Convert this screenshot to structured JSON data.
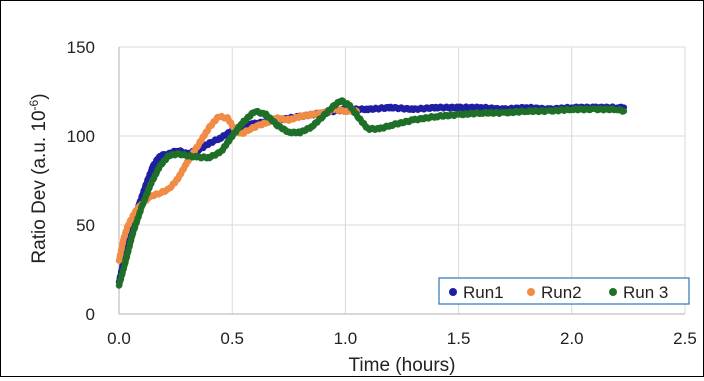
{
  "chart_data": {
    "type": "scatter",
    "xlabel": "Time (hours)",
    "ylabel": "Ratio Dev (a.u. 10",
    "ylabel_sup": "-6",
    "ylabel_suffix": ")",
    "xlim": [
      0,
      2.5
    ],
    "ylim": [
      0,
      150
    ],
    "xticks": [
      0.0,
      0.5,
      1.0,
      1.5,
      2.0,
      2.5
    ],
    "xtick_labels": [
      "0.0",
      "0.5",
      "1.0",
      "1.5",
      "2.0",
      "2.5"
    ],
    "yticks": [
      0,
      50,
      100,
      150
    ],
    "ytick_labels": [
      "0",
      "50",
      "100",
      "150"
    ],
    "grid": true,
    "legend_position": "bottom-right",
    "series": [
      {
        "name": "Run1",
        "color": "#1f1fa3",
        "points": [
          [
            0.0,
            18
          ],
          [
            0.03,
            35
          ],
          [
            0.06,
            50
          ],
          [
            0.09,
            62
          ],
          [
            0.12,
            73
          ],
          [
            0.15,
            83
          ],
          [
            0.18,
            89
          ],
          [
            0.22,
            90
          ],
          [
            0.26,
            92
          ],
          [
            0.3,
            90
          ],
          [
            0.35,
            92
          ],
          [
            0.4,
            96
          ],
          [
            0.45,
            99
          ],
          [
            0.5,
            103
          ],
          [
            0.55,
            106
          ],
          [
            0.6,
            107
          ],
          [
            0.7,
            109
          ],
          [
            0.8,
            111
          ],
          [
            0.9,
            113
          ],
          [
            1.0,
            115
          ],
          [
            1.1,
            115
          ],
          [
            1.2,
            116
          ],
          [
            1.3,
            115
          ],
          [
            1.4,
            116
          ],
          [
            1.5,
            116
          ],
          [
            1.6,
            116
          ],
          [
            1.7,
            115
          ],
          [
            1.8,
            116
          ],
          [
            1.9,
            115
          ],
          [
            2.0,
            116
          ],
          [
            2.1,
            116
          ],
          [
            2.2,
            116
          ],
          [
            2.23,
            116
          ]
        ]
      },
      {
        "name": "Run2",
        "color": "#f08c46",
        "points": [
          [
            0.0,
            30
          ],
          [
            0.02,
            42
          ],
          [
            0.04,
            50
          ],
          [
            0.07,
            57
          ],
          [
            0.1,
            62
          ],
          [
            0.14,
            66
          ],
          [
            0.18,
            68
          ],
          [
            0.22,
            70
          ],
          [
            0.26,
            76
          ],
          [
            0.3,
            85
          ],
          [
            0.35,
            95
          ],
          [
            0.4,
            105
          ],
          [
            0.44,
            111
          ],
          [
            0.48,
            110
          ],
          [
            0.51,
            104
          ],
          [
            0.54,
            101
          ],
          [
            0.58,
            104
          ],
          [
            0.62,
            106
          ],
          [
            0.66,
            108
          ],
          [
            0.7,
            110
          ],
          [
            0.75,
            109
          ],
          [
            0.8,
            111
          ],
          [
            0.85,
            112
          ],
          [
            0.9,
            113
          ],
          [
            0.95,
            115
          ],
          [
            1.0,
            114
          ],
          [
            1.05,
            114
          ]
        ]
      },
      {
        "name": "Run 3",
        "color": "#1f6f28",
        "points": [
          [
            0.0,
            16
          ],
          [
            0.03,
            30
          ],
          [
            0.06,
            45
          ],
          [
            0.1,
            60
          ],
          [
            0.14,
            73
          ],
          [
            0.18,
            83
          ],
          [
            0.22,
            89
          ],
          [
            0.26,
            90
          ],
          [
            0.3,
            89
          ],
          [
            0.35,
            88
          ],
          [
            0.4,
            88
          ],
          [
            0.45,
            91
          ],
          [
            0.5,
            100
          ],
          [
            0.55,
            108
          ],
          [
            0.6,
            114
          ],
          [
            0.65,
            112
          ],
          [
            0.7,
            106
          ],
          [
            0.75,
            102
          ],
          [
            0.8,
            102
          ],
          [
            0.85,
            105
          ],
          [
            0.9,
            111
          ],
          [
            0.95,
            117
          ],
          [
            0.98,
            120
          ],
          [
            1.02,
            117
          ],
          [
            1.06,
            110
          ],
          [
            1.1,
            104
          ],
          [
            1.15,
            104
          ],
          [
            1.2,
            106
          ],
          [
            1.3,
            109
          ],
          [
            1.4,
            111
          ],
          [
            1.5,
            112
          ],
          [
            1.6,
            113
          ],
          [
            1.7,
            113
          ],
          [
            1.8,
            114
          ],
          [
            1.9,
            114
          ],
          [
            2.0,
            115
          ],
          [
            2.1,
            115
          ],
          [
            2.2,
            115
          ],
          [
            2.23,
            114
          ]
        ]
      }
    ]
  }
}
